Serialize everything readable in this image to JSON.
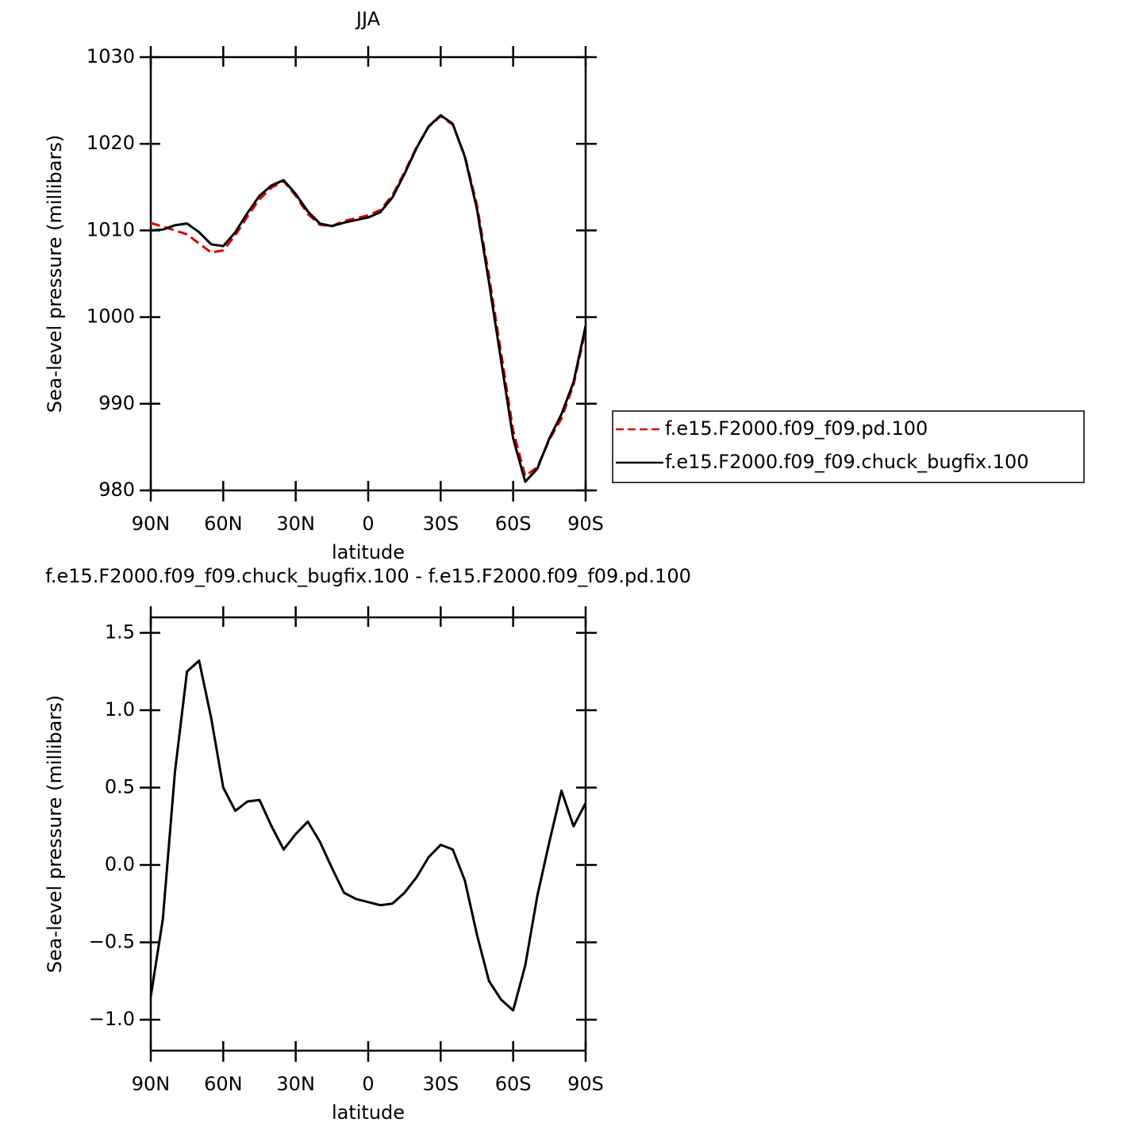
{
  "chart_data": [
    {
      "type": "line",
      "title": "JJA",
      "x_label": "latitude",
      "y_label": "Sea-level pressure (millibars)",
      "xlim": [
        90,
        -90
      ],
      "xticks": [
        {
          "value": 90,
          "label": "90N"
        },
        {
          "value": 60,
          "label": "60N"
        },
        {
          "value": 30,
          "label": "30N"
        },
        0,
        {
          "value": -30,
          "label": "30S"
        },
        {
          "value": -60,
          "label": "60S"
        },
        {
          "value": -90,
          "label": "90S"
        }
      ],
      "ylim": [
        980,
        1030
      ],
      "yticks": [
        980,
        990,
        1000,
        1010,
        1020,
        1030
      ],
      "legend": "right",
      "x": [
        90,
        85,
        80,
        75,
        70,
        65,
        60,
        55,
        50,
        45,
        40,
        35,
        30,
        25,
        20,
        15,
        10,
        5,
        0,
        -5,
        -10,
        -15,
        -20,
        -25,
        -30,
        -35,
        -40,
        -45,
        -50,
        -55,
        -60,
        -65,
        -70,
        -75,
        -80,
        -85,
        -90
      ],
      "series": [
        {
          "name": "f.e15.F2000.f09_f09.pd.100",
          "color": "#e00000",
          "line_style": "dashed",
          "values": [
            1010.85,
            1010.45,
            1010.0,
            1009.55,
            1008.5,
            1007.45,
            1007.7,
            1009.45,
            1011.6,
            1013.6,
            1014.95,
            1015.7,
            1014.0,
            1011.9,
            1010.65,
            1010.5,
            1011.1,
            1011.4,
            1011.75,
            1012.35,
            1014.05,
            1016.7,
            1019.6,
            1021.95,
            1023.2,
            1022.2,
            1018.6,
            1012.95,
            1004.75,
            995.9,
            986.9,
            981.65,
            982.7,
            985.85,
            988.3,
            992.2,
            998.6
          ]
        },
        {
          "name": "f.e15.F2000.f09_f09.chuck_bugfix.100",
          "color": "#000000",
          "line_style": "solid",
          "values": [
            1010.0,
            1010.1,
            1010.6,
            1010.8,
            1009.8,
            1008.4,
            1008.2,
            1009.8,
            1012.0,
            1014.0,
            1015.2,
            1015.8,
            1014.2,
            1012.2,
            1010.8,
            1010.5,
            1010.9,
            1011.2,
            1011.5,
            1012.1,
            1013.8,
            1016.5,
            1019.5,
            1022.0,
            1023.3,
            1022.3,
            1018.5,
            1012.5,
            1004.0,
            995.0,
            986.0,
            981.0,
            982.5,
            986.0,
            988.8,
            992.5,
            999.0
          ]
        }
      ]
    },
    {
      "type": "line",
      "title": "f.e15.F2000.f09_f09.chuck_bugfix.100 - f.e15.F2000.f09_f09.pd.100",
      "x_label": "latitude",
      "y_label": "Sea-level pressure (millibars)",
      "xlim": [
        90,
        -90
      ],
      "xticks": [
        {
          "value": 90,
          "label": "90N"
        },
        {
          "value": 60,
          "label": "60N"
        },
        {
          "value": 30,
          "label": "30N"
        },
        0,
        {
          "value": -30,
          "label": "30S"
        },
        {
          "value": -60,
          "label": "60S"
        },
        {
          "value": -90,
          "label": "90S"
        }
      ],
      "ylim": [
        -1.2,
        1.6
      ],
      "yticks": [
        {
          "value": -1,
          "label": "−1.0"
        },
        {
          "value": -0.5,
          "label": "−0.5"
        },
        {
          "value": 0,
          "label": "0.0"
        },
        0.5,
        {
          "value": 1,
          "label": "1.0"
        },
        1.5
      ],
      "x": [
        90,
        85,
        80,
        75,
        70,
        65,
        60,
        55,
        50,
        45,
        40,
        35,
        30,
        25,
        20,
        15,
        10,
        5,
        0,
        -5,
        -10,
        -15,
        -20,
        -25,
        -30,
        -35,
        -40,
        -45,
        -50,
        -55,
        -60,
        -65,
        -70,
        -75,
        -80,
        -85,
        -90
      ],
      "series": [
        {
          "color": "#000000",
          "line_style": "solid",
          "values": [
            -0.85,
            -0.35,
            0.6,
            1.25,
            1.32,
            0.95,
            0.5,
            0.35,
            0.41,
            0.42,
            0.25,
            0.1,
            0.2,
            0.28,
            0.15,
            -0.02,
            -0.18,
            -0.22,
            -0.24,
            -0.26,
            -0.25,
            -0.18,
            -0.08,
            0.05,
            0.13,
            0.1,
            -0.1,
            -0.45,
            -0.75,
            -0.87,
            -0.94,
            -0.65,
            -0.2,
            0.15,
            0.48,
            0.25,
            0.4
          ]
        }
      ]
    }
  ]
}
